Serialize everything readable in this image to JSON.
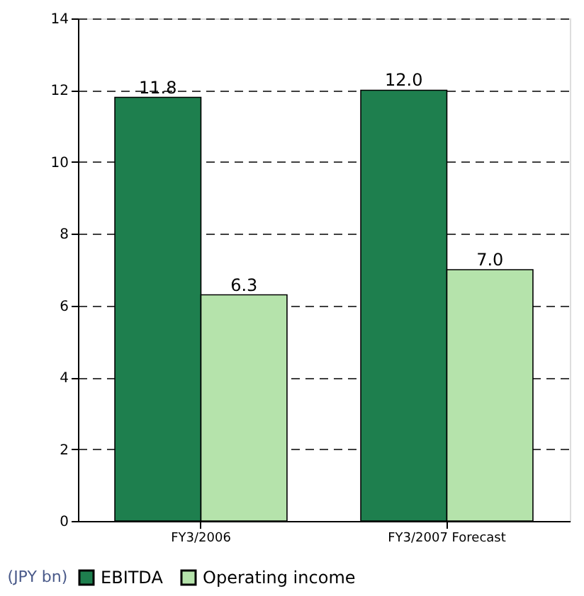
{
  "chart_data": {
    "type": "bar",
    "categories": [
      "FY3/2006",
      "FY3/2007 Forecast"
    ],
    "series": [
      {
        "name": "EBITDA",
        "color": "#1e7f4e",
        "values": [
          11.8,
          12.0
        ],
        "value_labels": [
          "11.8",
          "12.0"
        ]
      },
      {
        "name": "Operating income",
        "color": "#b5e3ab",
        "values": [
          6.3,
          7.0
        ],
        "value_labels": [
          "6.3",
          "7.0"
        ]
      }
    ],
    "ylim": [
      0,
      14
    ],
    "yticks": [
      0,
      2,
      4,
      6,
      8,
      10,
      12,
      14
    ],
    "grid": "y",
    "line_style": "dashed",
    "legend": "bottom",
    "annotations": [
      "(JPY bn)"
    ]
  }
}
